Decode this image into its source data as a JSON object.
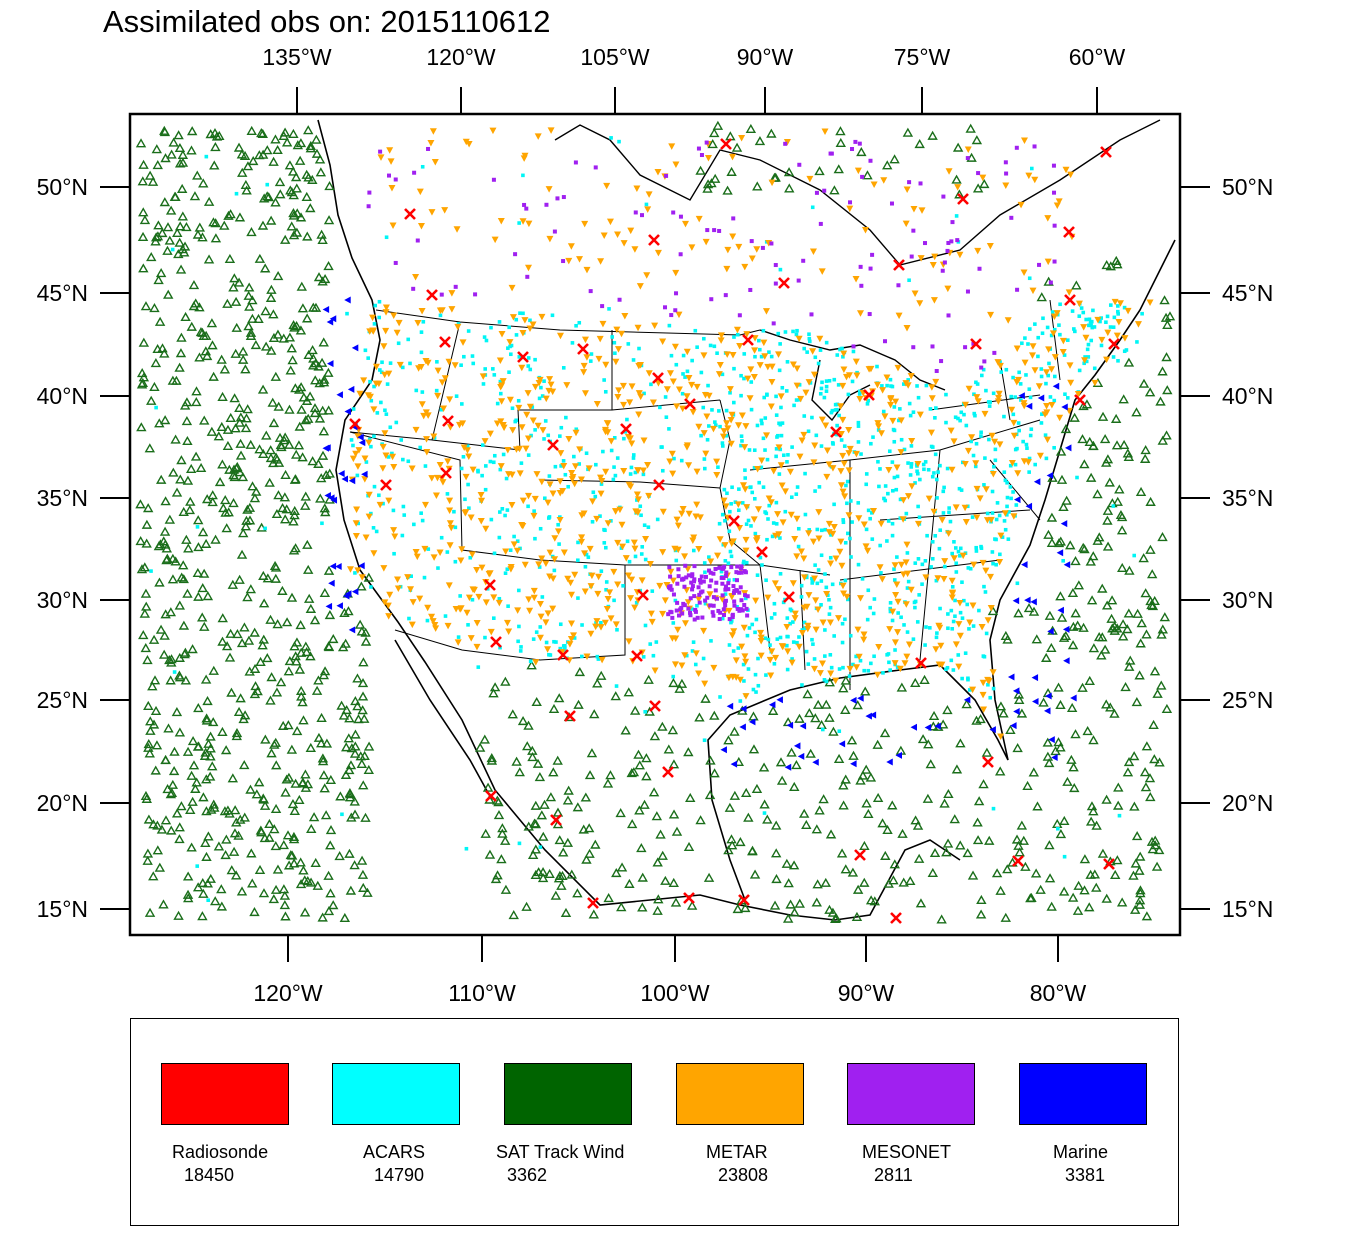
{
  "title": "Assimilated obs on: 2015110612",
  "top_axis_labels": [
    "135°W",
    "120°W",
    "105°W",
    "90°W",
    "75°W",
    "60°W"
  ],
  "bottom_axis_labels": [
    "120°W",
    "110°W",
    "100°W",
    "90°W",
    "80°W"
  ],
  "left_axis_labels": [
    "50°N",
    "45°N",
    "40°N",
    "35°N",
    "30°N",
    "25°N",
    "20°N",
    "15°N"
  ],
  "right_axis_labels": [
    "50°N",
    "45°N",
    "40°N",
    "35°N",
    "30°N",
    "25°N",
    "20°N",
    "15°N"
  ],
  "legend": [
    {
      "name": "Radiosonde",
      "count": "18450",
      "color": "#ff0000"
    },
    {
      "name": "ACARS",
      "count": "14790",
      "color": "#00ffff"
    },
    {
      "name": "SAT Track Wind",
      "count": "3362",
      "color": "#006400"
    },
    {
      "name": "METAR",
      "count": "23808",
      "color": "#ffa500"
    },
    {
      "name": "MESONET",
      "count": "2811",
      "color": "#a020f0"
    },
    {
      "name": "Marine",
      "count": "3381",
      "color": "#0000ff"
    }
  ],
  "marker_colors": {
    "radiosonde": "#ff0000",
    "acars": "#00f5f5",
    "sat_track_wind": "#1a6e1a",
    "metar": "#ffa500",
    "mesonet": "#a020f0",
    "marine": "#0000ff"
  }
}
